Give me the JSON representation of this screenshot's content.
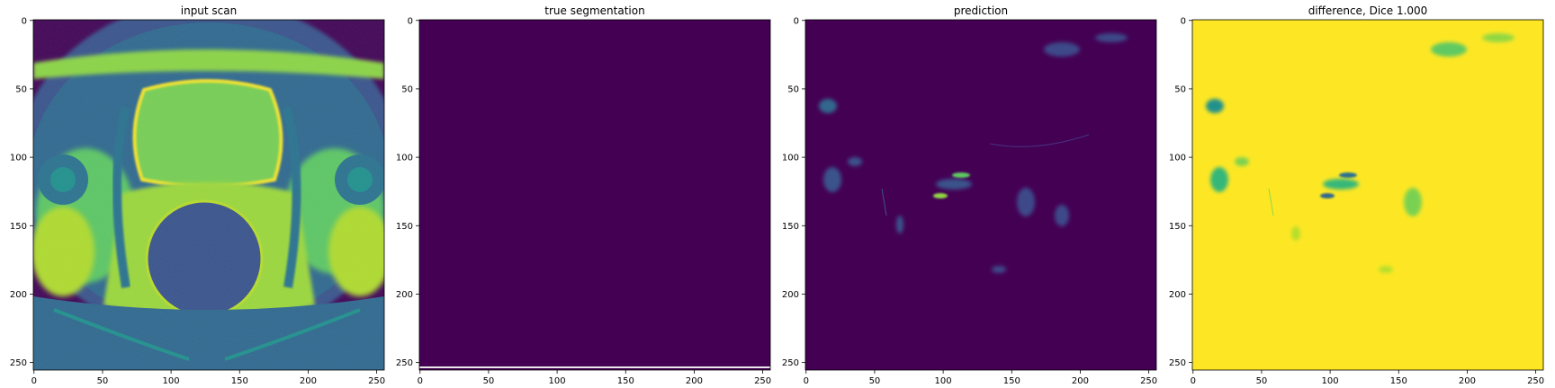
{
  "chart_data": [
    {
      "type": "heatmap",
      "title": "input scan",
      "xlim": [
        0,
        256
      ],
      "ylim": [
        256,
        0
      ],
      "x_ticks": [
        0,
        50,
        100,
        150,
        200,
        250
      ],
      "y_ticks": [
        0,
        50,
        100,
        150,
        200,
        250
      ],
      "x_tick_labels": [
        "0",
        "50",
        "100",
        "150",
        "200",
        "250"
      ],
      "y_tick_labels": [
        "0",
        "50",
        "100",
        "150",
        "200",
        "250"
      ],
      "colormap": "viridis",
      "content": "axial pelvic MRI slice"
    },
    {
      "type": "heatmap",
      "title": "true segmentation",
      "xlim": [
        0,
        256
      ],
      "ylim": [
        256,
        0
      ],
      "x_ticks": [
        0,
        50,
        100,
        150,
        200,
        250
      ],
      "y_ticks": [
        0,
        50,
        100,
        150,
        200,
        250
      ],
      "x_tick_labels": [
        "0",
        "50",
        "100",
        "150",
        "200",
        "250"
      ],
      "y_tick_labels": [
        "0",
        "50",
        "100",
        "150",
        "200",
        "250"
      ],
      "colormap": "viridis",
      "content": "uniform zero mask"
    },
    {
      "type": "heatmap",
      "title": "prediction",
      "xlim": [
        0,
        256
      ],
      "ylim": [
        256,
        0
      ],
      "x_ticks": [
        0,
        50,
        100,
        150,
        200,
        250
      ],
      "y_ticks": [
        0,
        50,
        100,
        150,
        200,
        250
      ],
      "x_tick_labels": [
        "0",
        "50",
        "100",
        "150",
        "200",
        "250"
      ],
      "y_tick_labels": [
        "0",
        "50",
        "100",
        "150",
        "200",
        "250"
      ],
      "colormap": "viridis",
      "content": "mostly low values with sparse faint activations"
    },
    {
      "type": "heatmap",
      "title": "difference, Dice 1.000",
      "xlim": [
        0,
        256
      ],
      "ylim": [
        256,
        0
      ],
      "x_ticks": [
        0,
        50,
        100,
        150,
        200,
        250
      ],
      "y_ticks": [
        0,
        50,
        100,
        150,
        200,
        250
      ],
      "x_tick_labels": [
        "0",
        "50",
        "100",
        "150",
        "200",
        "250"
      ],
      "y_tick_labels": [
        "0",
        "50",
        "100",
        "150",
        "200",
        "250"
      ],
      "colormap": "viridis",
      "content": "mostly high values with sparse darker spots"
    }
  ],
  "colors": {
    "viridis_dark": "#440154",
    "viridis_blue": "#31688e",
    "viridis_teal": "#21918c",
    "viridis_green": "#35b779",
    "viridis_lime": "#90d743",
    "viridis_yellow": "#fde725"
  }
}
